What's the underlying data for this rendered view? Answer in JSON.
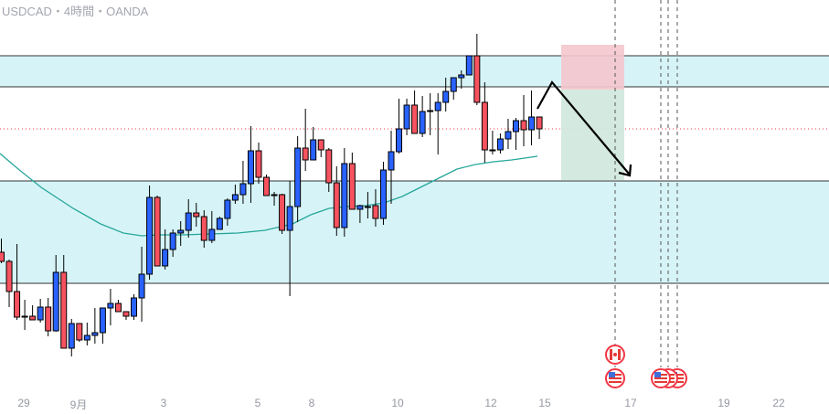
{
  "header": {
    "title": "USDCAD・4時間・OANDA"
  },
  "colors": {
    "up": "#2962ff",
    "down": "#f7525f",
    "zone_fill": "#d6f4f7",
    "moving_average": "#26a69a",
    "stop_zone": "#f4c7cc",
    "target_zone": "#cfe8de",
    "dotted_level": "#f23645"
  },
  "x_axis": {
    "labels": [
      "29",
      "9月",
      "3",
      "5",
      "8",
      "10",
      "12",
      "15",
      "17",
      "19",
      "22"
    ]
  },
  "events": [
    {
      "icon": "canada-flag-icon",
      "label": "CAD"
    },
    {
      "icon": "us-flag-icon",
      "label": "USD"
    },
    {
      "icon": "us-flag-icon",
      "label": "USD"
    },
    {
      "icon": "us-flag-icon",
      "label": "USD"
    },
    {
      "icon": "us-flag-icon",
      "label": "USD"
    }
  ]
}
